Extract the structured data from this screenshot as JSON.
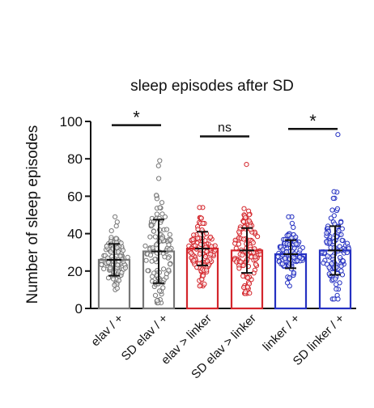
{
  "chart_data": {
    "type": "bar",
    "title": "sleep episodes after SD",
    "xlabel": "",
    "ylabel": "Number of sleep episodes",
    "ylim": [
      0,
      100
    ],
    "yticks": [
      0,
      20,
      40,
      60,
      80,
      100
    ],
    "grid": false,
    "categories": [
      "elav / +",
      "SD elav / +",
      "elav > linker",
      "SD elav > linker",
      "linker / +",
      "SD linker / +"
    ],
    "means": [
      26,
      30.5,
      32,
      31,
      29,
      31
    ],
    "sd": [
      8.5,
      17,
      9,
      12,
      7.5,
      13
    ],
    "colors": [
      "#777777",
      "#777777",
      "#d4262c",
      "#d4262c",
      "#2531c2",
      "#2531c2"
    ],
    "points_range": [
      {
        "min": 10,
        "max": 49
      },
      {
        "min": 3,
        "max": 79
      },
      {
        "min": 12,
        "max": 54
      },
      {
        "min": 8,
        "max": 77
      },
      {
        "min": 12,
        "max": 49
      },
      {
        "min": 5,
        "max": 93
      }
    ],
    "significance": [
      {
        "groups": [
          0,
          1
        ],
        "label": "*",
        "y": 98
      },
      {
        "groups": [
          2,
          3
        ],
        "label": "ns",
        "y": 92
      },
      {
        "groups": [
          4,
          5
        ],
        "label": "*",
        "y": 96
      }
    ]
  }
}
